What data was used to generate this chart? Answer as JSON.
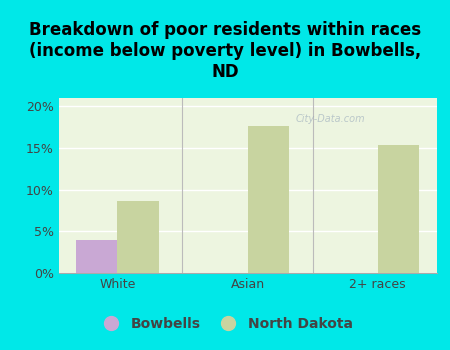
{
  "title": "Breakdown of poor residents within races\n(income below poverty level) in Bowbells,\nND",
  "categories": [
    "White",
    "Asian",
    "2+ races"
  ],
  "bowbells_values": [
    4.0,
    0,
    0
  ],
  "nd_values": [
    8.6,
    17.6,
    15.4
  ],
  "bowbells_color": "#c9a8d4",
  "nd_color": "#c8d4a0",
  "background_color": "#00e8e8",
  "plot_bg_color": "#edf5e0",
  "ylim": [
    0,
    21
  ],
  "yticks": [
    0,
    5,
    10,
    15,
    20
  ],
  "ytick_labels": [
    "0%",
    "5%",
    "10%",
    "15%",
    "20%"
  ],
  "bar_width": 0.32,
  "legend_labels": [
    "Bowbells",
    "North Dakota"
  ],
  "title_fontsize": 12,
  "tick_fontsize": 9,
  "legend_fontsize": 10,
  "watermark": "City-Data.com"
}
